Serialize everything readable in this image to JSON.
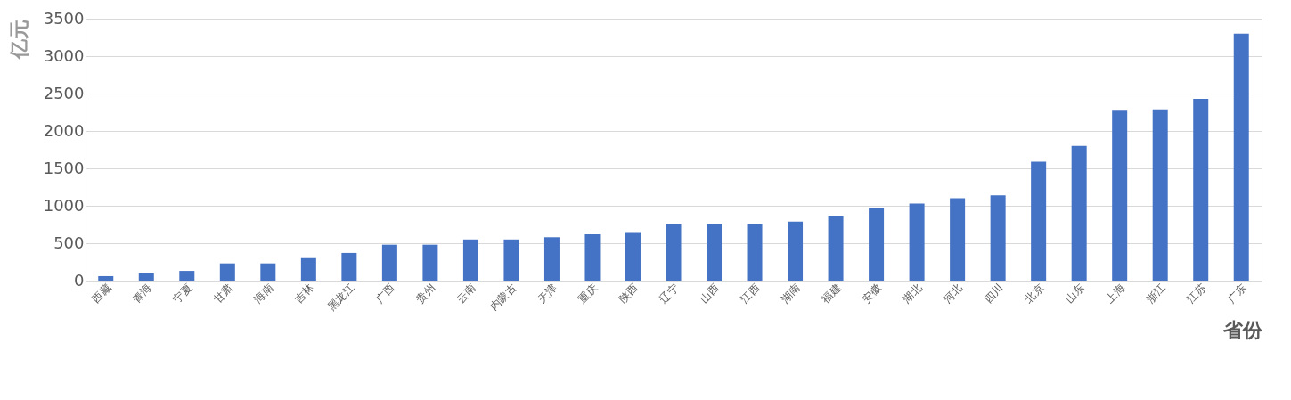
{
  "chart_data": {
    "type": "bar",
    "ylabel": "亿元",
    "xlabel": "省份",
    "categories": [
      "西藏",
      "青海",
      "宁夏",
      "甘肃",
      "海南",
      "吉林",
      "黑龙江",
      "广西",
      "贵州",
      "云南",
      "内蒙古",
      "天津",
      "重庆",
      "陕西",
      "辽宁",
      "山西",
      "江西",
      "湖南",
      "福建",
      "安徽",
      "湖北",
      "河北",
      "四川",
      "北京",
      "山东",
      "上海",
      "浙江",
      "江苏",
      "广东"
    ],
    "values": [
      60,
      100,
      130,
      230,
      230,
      300,
      370,
      480,
      480,
      550,
      550,
      580,
      620,
      650,
      750,
      750,
      750,
      790,
      860,
      970,
      1030,
      1100,
      1140,
      1590,
      1800,
      2270,
      2290,
      2430,
      3300
    ],
    "color": "#4472c4",
    "ylim": [
      0,
      3500
    ],
    "yticks": [
      0,
      500,
      1000,
      1500,
      2000,
      2500,
      3000,
      3500
    ],
    "grid": "y"
  }
}
